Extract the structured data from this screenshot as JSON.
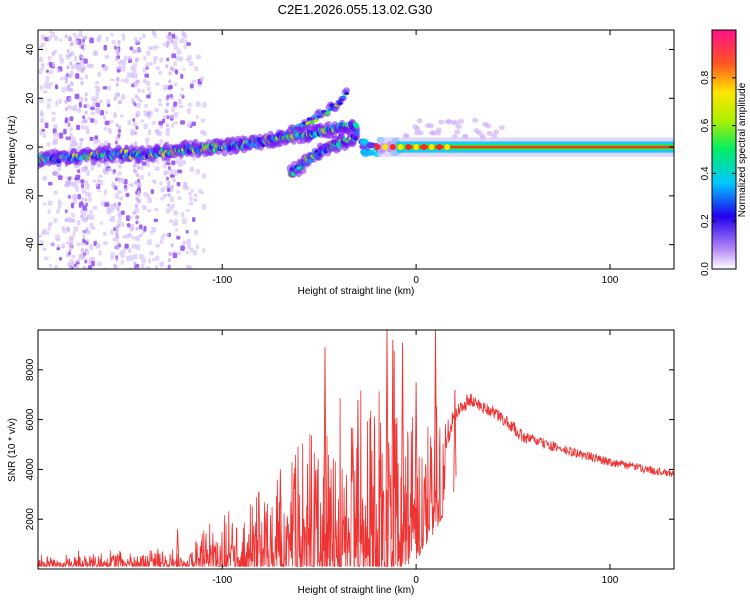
{
  "title": "C2E1.2026.055.13.02.G30",
  "chart_data": [
    {
      "type": "heatmap",
      "name": "spectrogram",
      "xlabel": "Height of straight line (km)",
      "ylabel": "Frequency (Hz)",
      "xlim": [
        -195,
        133
      ],
      "ylim": [
        -50,
        48
      ],
      "xticks": [
        -100,
        0,
        100
      ],
      "xtick_labels": [
        "-100",
        "0",
        "100"
      ],
      "yticks": [
        -40,
        -20,
        0,
        20,
        40
      ],
      "ytick_labels": [
        "-40",
        "-20",
        "0",
        "20",
        "40"
      ],
      "main_track": [
        {
          "x": -195,
          "y": -5
        },
        {
          "x": -175,
          "y": -4
        },
        {
          "x": -160,
          "y": -3
        },
        {
          "x": -140,
          "y": -3
        },
        {
          "x": -120,
          "y": -1
        },
        {
          "x": -100,
          "y": 0
        },
        {
          "x": -90,
          "y": 1
        },
        {
          "x": -80,
          "y": 2
        },
        {
          "x": -70,
          "y": 4
        },
        {
          "x": -60,
          "y": 5
        },
        {
          "x": -50,
          "y": 6
        },
        {
          "x": -40,
          "y": 8
        },
        {
          "x": -30,
          "y": 9
        }
      ],
      "secondary_track": [
        {
          "x": -65,
          "y": -11
        },
        {
          "x": -55,
          "y": -5
        },
        {
          "x": -45,
          "y": 0
        },
        {
          "x": -35,
          "y": 3
        },
        {
          "x": -30,
          "y": 5
        }
      ],
      "upper_streak": [
        {
          "x": -75,
          "y": 2
        },
        {
          "x": -60,
          "y": 8
        },
        {
          "x": -45,
          "y": 15
        },
        {
          "x": -35,
          "y": 22
        }
      ],
      "carrier": {
        "from": -20,
        "to": 133,
        "y": 0
      },
      "colorbar": {
        "label": "Normalized spectral amplitude",
        "range": [
          0,
          1
        ],
        "ticks": [
          0.0,
          0.2,
          0.4,
          0.6,
          0.8
        ],
        "tick_labels": [
          "0.0",
          "0.2",
          "0.4",
          "0.6",
          "0.8"
        ]
      }
    },
    {
      "type": "line",
      "name": "snr",
      "xlabel": "Height of straight line (km)",
      "ylabel": "SNR (10 * v/v)",
      "xlim": [
        -195,
        133
      ],
      "ylim": [
        0,
        9600
      ],
      "xticks": [
        -100,
        0,
        100
      ],
      "xtick_labels": [
        "-100",
        "0",
        "100"
      ],
      "yticks": [
        2000,
        4000,
        6000,
        8000
      ],
      "ytick_labels": [
        "2000",
        "4000",
        "6000",
        "8000"
      ],
      "color": "#ee3333",
      "envelope": [
        {
          "x": -195,
          "base": 300,
          "spread": 300
        },
        {
          "x": -125,
          "base": 400,
          "spread": 400
        },
        {
          "x": -100,
          "base": 700,
          "spread": 1100
        },
        {
          "x": -75,
          "base": 1000,
          "spread": 2200
        },
        {
          "x": -45,
          "base": 1500,
          "spread": 3500
        },
        {
          "x": -20,
          "base": 2000,
          "spread": 5000
        },
        {
          "x": -10,
          "base": 2500,
          "spread": 4500
        },
        {
          "x": 0,
          "base": 3200,
          "spread": 3500
        },
        {
          "x": 10,
          "base": 4500,
          "spread": 2500
        },
        {
          "x": 20,
          "base": 6200,
          "spread": 700
        },
        {
          "x": 27,
          "base": 6800,
          "spread": 600
        },
        {
          "x": 40,
          "base": 6300,
          "spread": 500
        },
        {
          "x": 50,
          "base": 5700,
          "spread": 500
        },
        {
          "x": 55,
          "base": 5300,
          "spread": 500
        },
        {
          "x": 60,
          "base": 5200,
          "spread": 400
        },
        {
          "x": 75,
          "base": 4800,
          "spread": 400
        },
        {
          "x": 100,
          "base": 4300,
          "spread": 350
        },
        {
          "x": 133,
          "base": 3800,
          "spread": 300
        }
      ],
      "spikes": [
        {
          "x": -123,
          "y": 1600
        },
        {
          "x": -70,
          "y": 4000
        },
        {
          "x": -47,
          "y": 8900
        },
        {
          "x": -30,
          "y": 6800
        },
        {
          "x": -15,
          "y": 9600
        },
        {
          "x": -12,
          "y": 9200
        },
        {
          "x": -7,
          "y": 9100
        },
        {
          "x": 0,
          "y": 7500
        },
        {
          "x": 10,
          "y": 9600
        },
        {
          "x": 20,
          "y": 7200
        }
      ]
    }
  ]
}
